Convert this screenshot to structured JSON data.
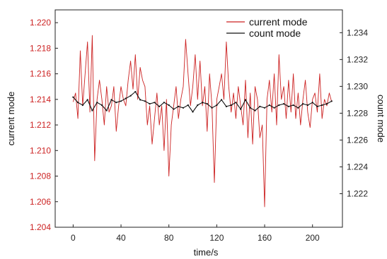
{
  "chart_data": {
    "type": "line",
    "xlabel": "time/s",
    "ylabel_left": "current mode",
    "ylabel_right": "count mode",
    "xlim": [
      -15,
      225
    ],
    "xticks": [
      0,
      40,
      80,
      120,
      160,
      200
    ],
    "ylim_left": [
      1.204,
      1.221
    ],
    "yticks_left": [
      1.204,
      1.206,
      1.208,
      1.21,
      1.212,
      1.214,
      1.216,
      1.218,
      1.22
    ],
    "ylim_right": [
      1.2195,
      1.2357
    ],
    "yticks_right": [
      1.222,
      1.224,
      1.226,
      1.228,
      1.23,
      1.232,
      1.234
    ],
    "legend_position": "top-right",
    "series": [
      {
        "name": "current mode",
        "axis": "left",
        "color": "#cc2222",
        "x": [
          0,
          2,
          4,
          6,
          8,
          10,
          12,
          14,
          16,
          18,
          20,
          22,
          24,
          26,
          28,
          30,
          32,
          34,
          36,
          38,
          40,
          42,
          44,
          46,
          48,
          50,
          52,
          54,
          56,
          58,
          60,
          62,
          64,
          66,
          68,
          70,
          72,
          74,
          76,
          78,
          80,
          82,
          84,
          86,
          88,
          90,
          92,
          94,
          96,
          98,
          100,
          102,
          104,
          106,
          108,
          110,
          112,
          114,
          116,
          118,
          120,
          122,
          124,
          126,
          128,
          130,
          132,
          134,
          136,
          138,
          140,
          142,
          144,
          146,
          148,
          150,
          152,
          154,
          156,
          158,
          160,
          162,
          164,
          166,
          168,
          170,
          172,
          174,
          176,
          178,
          180,
          182,
          184,
          186,
          188,
          190,
          192,
          194,
          196,
          198,
          200,
          202,
          204,
          206,
          208,
          210,
          212,
          214,
          216
        ],
        "y": [
          1.2138,
          1.2145,
          1.2125,
          1.2178,
          1.2135,
          1.216,
          1.2185,
          1.213,
          1.219,
          1.2092,
          1.214,
          1.2155,
          1.214,
          1.212,
          1.215,
          1.213,
          1.2135,
          1.215,
          1.2115,
          1.2135,
          1.215,
          1.214,
          1.2135,
          1.2155,
          1.217,
          1.2148,
          1.2175,
          1.214,
          1.2165,
          1.2155,
          1.215,
          1.212,
          1.2135,
          1.2105,
          1.2125,
          1.2145,
          1.212,
          1.2135,
          1.21,
          1.214,
          1.208,
          1.212,
          1.2135,
          1.215,
          1.2125,
          1.214,
          1.215,
          1.2187,
          1.216,
          1.2135,
          1.215,
          1.2175,
          1.214,
          1.217,
          1.2135,
          1.215,
          1.2115,
          1.216,
          1.2135,
          1.2075,
          1.214,
          1.215,
          1.216,
          1.214,
          1.2185,
          1.215,
          1.213,
          1.2145,
          1.2125,
          1.215,
          1.2135,
          1.212,
          1.2155,
          1.211,
          1.2145,
          1.2105,
          1.215,
          1.214,
          1.211,
          1.212,
          1.2056,
          1.214,
          1.2155,
          1.213,
          1.216,
          1.212,
          1.2175,
          1.214,
          1.215,
          1.2125,
          1.2155,
          1.213,
          1.216,
          1.2125,
          1.2145,
          1.212,
          1.214,
          1.2155,
          1.213,
          1.2118,
          1.214,
          1.2145,
          1.213,
          1.216,
          1.2125,
          1.214,
          1.2135,
          1.2145,
          1.2138
        ]
      },
      {
        "name": "count mode",
        "axis": "right",
        "color": "#111111",
        "x": [
          0,
          4,
          8,
          12,
          16,
          20,
          24,
          28,
          32,
          36,
          40,
          44,
          48,
          52,
          56,
          60,
          64,
          68,
          72,
          76,
          80,
          84,
          88,
          92,
          96,
          100,
          104,
          108,
          112,
          116,
          120,
          124,
          128,
          132,
          136,
          140,
          144,
          148,
          152,
          156,
          160,
          164,
          168,
          172,
          176,
          180,
          184,
          188,
          192,
          196,
          200,
          204,
          208,
          212,
          216
        ],
        "y": [
          1.2292,
          1.2288,
          1.2286,
          1.229,
          1.2282,
          1.2288,
          1.2286,
          1.2282,
          1.229,
          1.2288,
          1.2289,
          1.2291,
          1.2293,
          1.2296,
          1.229,
          1.2289,
          1.2287,
          1.2288,
          1.2285,
          1.2288,
          1.2286,
          1.2283,
          1.2285,
          1.2284,
          1.2286,
          1.2281,
          1.2286,
          1.2288,
          1.2287,
          1.2284,
          1.2286,
          1.229,
          1.2285,
          1.2286,
          1.2288,
          1.2283,
          1.229,
          1.2284,
          1.2282,
          1.2285,
          1.2284,
          1.2286,
          1.2284,
          1.2286,
          1.2287,
          1.2285,
          1.2286,
          1.2284,
          1.2287,
          1.2286,
          1.2288,
          1.2285,
          1.2286,
          1.2287,
          1.2289
        ]
      }
    ]
  }
}
